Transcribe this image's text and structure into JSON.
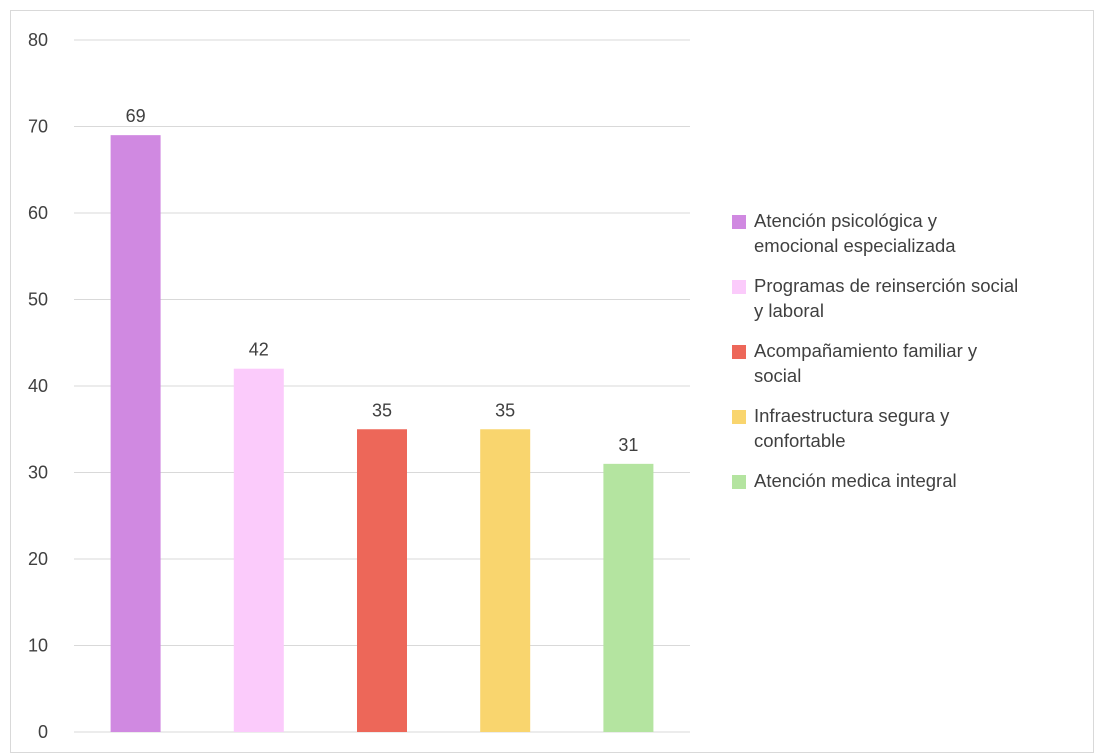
{
  "chart_data": {
    "type": "bar",
    "title": "",
    "xlabel": "",
    "ylabel": "",
    "ylim": [
      0,
      80
    ],
    "yticks": [
      0,
      10,
      20,
      30,
      40,
      50,
      60,
      70,
      80
    ],
    "grid": true,
    "legend_position": "right",
    "categories": [
      "Atención psicológica y emocional especializada",
      "Programas de reinserción social y laboral",
      "Acompañamiento familiar y social",
      "Infraestructura segura y confortable",
      "Atención medica integral"
    ],
    "values": [
      69,
      42,
      35,
      35,
      31
    ],
    "colors": [
      "#d089e1",
      "#fbcbfb",
      "#ed6759",
      "#f9d56e",
      "#b4e4a0"
    ],
    "legend": [
      {
        "line1": "Atención psicológica y",
        "line2": "emocional especializada"
      },
      {
        "line1": "Programas de reinserción social",
        "line2": "y laboral"
      },
      {
        "line1": "Acompañamiento familiar y",
        "line2": "social"
      },
      {
        "line1": "Infraestructura segura y",
        "line2": "confortable"
      },
      {
        "line1": "Atención medica integral",
        "line2": ""
      }
    ]
  }
}
